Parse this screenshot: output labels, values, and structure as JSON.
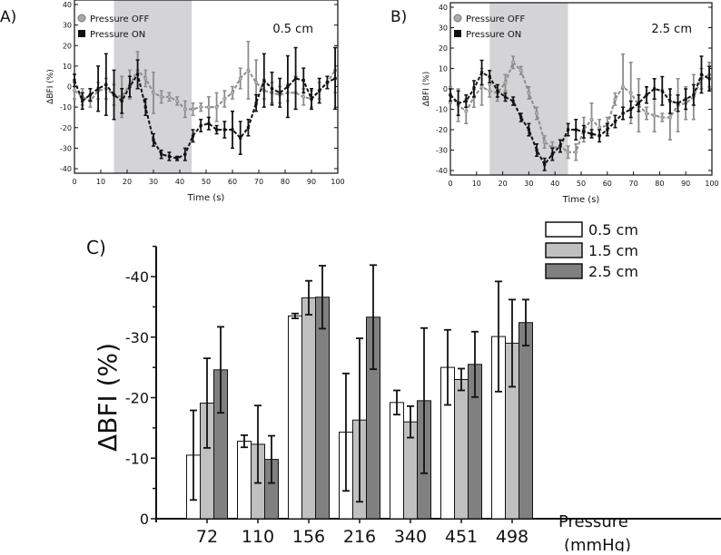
{
  "chart_data": [
    {
      "panel_label": "A)",
      "type": "line",
      "annotation": "0.5 cm",
      "xlabel": "Time (s)",
      "ylabel": "ΔBFI (%)",
      "xlim": [
        0,
        100
      ],
      "ylim": [
        -42,
        40
      ],
      "xticks": [
        "0",
        "10",
        "20",
        "30",
        "40",
        "50",
        "60",
        "70",
        "80",
        "90",
        "100"
      ],
      "yticks": [
        "40",
        "30",
        "20",
        "10",
        "0",
        "-10",
        "-20",
        "-30",
        "-40"
      ],
      "shaded_region": [
        15,
        44.5
      ],
      "legend": [
        "Pressure OFF",
        "Pressure ON"
      ],
      "legend_position": "top-left",
      "x": [
        0,
        3,
        6,
        9,
        12,
        15,
        18,
        21,
        24,
        27,
        30,
        33,
        36,
        39,
        42,
        45,
        48,
        51,
        54,
        57,
        60,
        63,
        66,
        69,
        72,
        75,
        78,
        81,
        84,
        87,
        90,
        93,
        96,
        99
      ],
      "series": [
        {
          "name": "Pressure OFF",
          "color": "#8c8c8c",
          "values": [
            -2,
            -5,
            -7,
            -2,
            -1,
            -4,
            -5,
            1,
            8,
            4,
            -3,
            -5,
            -5,
            -7,
            -11,
            -11,
            -10,
            -10,
            -10,
            -6,
            -3,
            4,
            8,
            2,
            -2,
            -3,
            -4,
            -3,
            -3,
            -5,
            -6,
            -2,
            2,
            8
          ],
          "errors": [
            4,
            4,
            3,
            4,
            5,
            5,
            10,
            7,
            9,
            4,
            10,
            3,
            2,
            2,
            4,
            3,
            2,
            5,
            7,
            4,
            3,
            5,
            14,
            11,
            4,
            5,
            4,
            4,
            8,
            4,
            4,
            4,
            3,
            11
          ]
        },
        {
          "name": "Pressure ON",
          "color": "#111111",
          "values": [
            3,
            -7,
            -4,
            -1,
            1,
            -4,
            -7,
            0,
            6,
            -10,
            -26,
            -33,
            -34,
            -35,
            -33,
            -24,
            -19,
            -18,
            -21,
            -21,
            -21,
            -25,
            -20,
            -8,
            3,
            -1,
            -3,
            0,
            4,
            3,
            -6,
            -2,
            2,
            4
          ],
          "errors": [
            3,
            4,
            3,
            11,
            15,
            12,
            6,
            5,
            7,
            4,
            3,
            2,
            2,
            1,
            3,
            3,
            3,
            3,
            2,
            4,
            9,
            8,
            4,
            4,
            13,
            8,
            7,
            15,
            15,
            6,
            5,
            6,
            3,
            15
          ]
        }
      ]
    },
    {
      "panel_label": "B)",
      "type": "line",
      "annotation": "2.5 cm",
      "xlabel": "Time (s)",
      "ylabel": "ΔBFI (%)",
      "xlim": [
        0,
        100
      ],
      "ylim": [
        -42,
        40
      ],
      "xticks": [
        "0",
        "10",
        "20",
        "30",
        "40",
        "50",
        "60",
        "70",
        "80",
        "90",
        "100"
      ],
      "yticks": [
        "40",
        "30",
        "20",
        "10",
        "0",
        "-10",
        "-20",
        "-30",
        "-40"
      ],
      "shaded_region": [
        15,
        45
      ],
      "legend": [
        "Pressure OFF",
        "Pressure ON"
      ],
      "legend_position": "top-left",
      "x": [
        0,
        3,
        6,
        9,
        12,
        15,
        18,
        21,
        24,
        27,
        30,
        33,
        36,
        39,
        42,
        45,
        48,
        51,
        54,
        57,
        60,
        63,
        66,
        69,
        72,
        75,
        78,
        81,
        84,
        87,
        90,
        93,
        96,
        99
      ],
      "series": [
        {
          "name": "Pressure OFF",
          "color": "#8c8c8c",
          "values": [
            -3,
            -8,
            -11,
            -4,
            1,
            -1,
            -2,
            3,
            13,
            9,
            -2,
            -12,
            -26,
            -29,
            -28,
            -31,
            -31,
            -20,
            -15,
            -19,
            -18,
            -5,
            1,
            -2,
            -8,
            -12,
            -13,
            -14,
            -14,
            -8,
            -7,
            -4,
            5,
            7
          ],
          "errors": [
            4,
            8,
            6,
            5,
            9,
            3,
            4,
            4,
            3,
            2,
            3,
            3,
            3,
            3,
            3,
            3,
            4,
            6,
            8,
            4,
            4,
            3,
            16,
            15,
            13,
            3,
            8,
            2,
            11,
            13,
            8,
            11,
            5,
            6
          ]
        },
        {
          "name": "Pressure ON",
          "color": "#111111",
          "values": [
            -3,
            -7,
            -6,
            0,
            8,
            6,
            -1,
            -4,
            -6,
            -14,
            -20,
            -30,
            -37,
            -32,
            -28,
            -20,
            -20,
            -21,
            -22,
            -23,
            -20,
            -16,
            -12,
            -10,
            -7,
            -3,
            0,
            -1,
            -6,
            -7,
            -5,
            -3,
            7,
            5
          ],
          "errors": [
            3,
            6,
            3,
            4,
            6,
            3,
            3,
            2,
            2,
            2,
            3,
            3,
            3,
            3,
            3,
            3,
            5,
            3,
            2,
            3,
            3,
            3,
            3,
            4,
            4,
            4,
            5,
            7,
            6,
            4,
            5,
            5,
            9,
            6
          ]
        }
      ]
    },
    {
      "panel_label": "C)",
      "type": "bar",
      "xlabel": "Pressure\n(mmHg)",
      "xlabel_lines": [
        "Pressure",
        "(mmHg)"
      ],
      "ylabel": "ΔBFI (%)",
      "ylim": [
        0,
        -45
      ],
      "yticks": [
        "0",
        "-10",
        "-20",
        "-30",
        "-40"
      ],
      "categories": [
        "72",
        "110",
        "156",
        "216",
        "340",
        "451",
        "498"
      ],
      "legend_position": "top-right",
      "series": [
        {
          "name": "0.5 cm",
          "color": "#ffffff",
          "values": [
            -10.5,
            -12.8,
            -33.5,
            -14.3,
            -19.2,
            -25.0,
            -30.1
          ],
          "errors": [
            7.4,
            1.0,
            0.4,
            9.7,
            2.0,
            6.2,
            9.1
          ]
        },
        {
          "name": "1.5 cm",
          "color": "#c0c0c0",
          "values": [
            -19.1,
            -12.3,
            -36.5,
            -16.3,
            -16.0,
            -23.0,
            -29.0
          ],
          "errors": [
            7.4,
            6.4,
            2.8,
            13.5,
            2.6,
            1.8,
            7.2
          ]
        },
        {
          "name": "2.5 cm",
          "color": "#808080",
          "values": [
            -24.6,
            -9.8,
            -36.6,
            -33.3,
            -19.5,
            -25.5,
            -32.4
          ],
          "errors": [
            7.1,
            3.9,
            5.2,
            8.6,
            12.0,
            5.4,
            3.8
          ]
        }
      ]
    }
  ]
}
